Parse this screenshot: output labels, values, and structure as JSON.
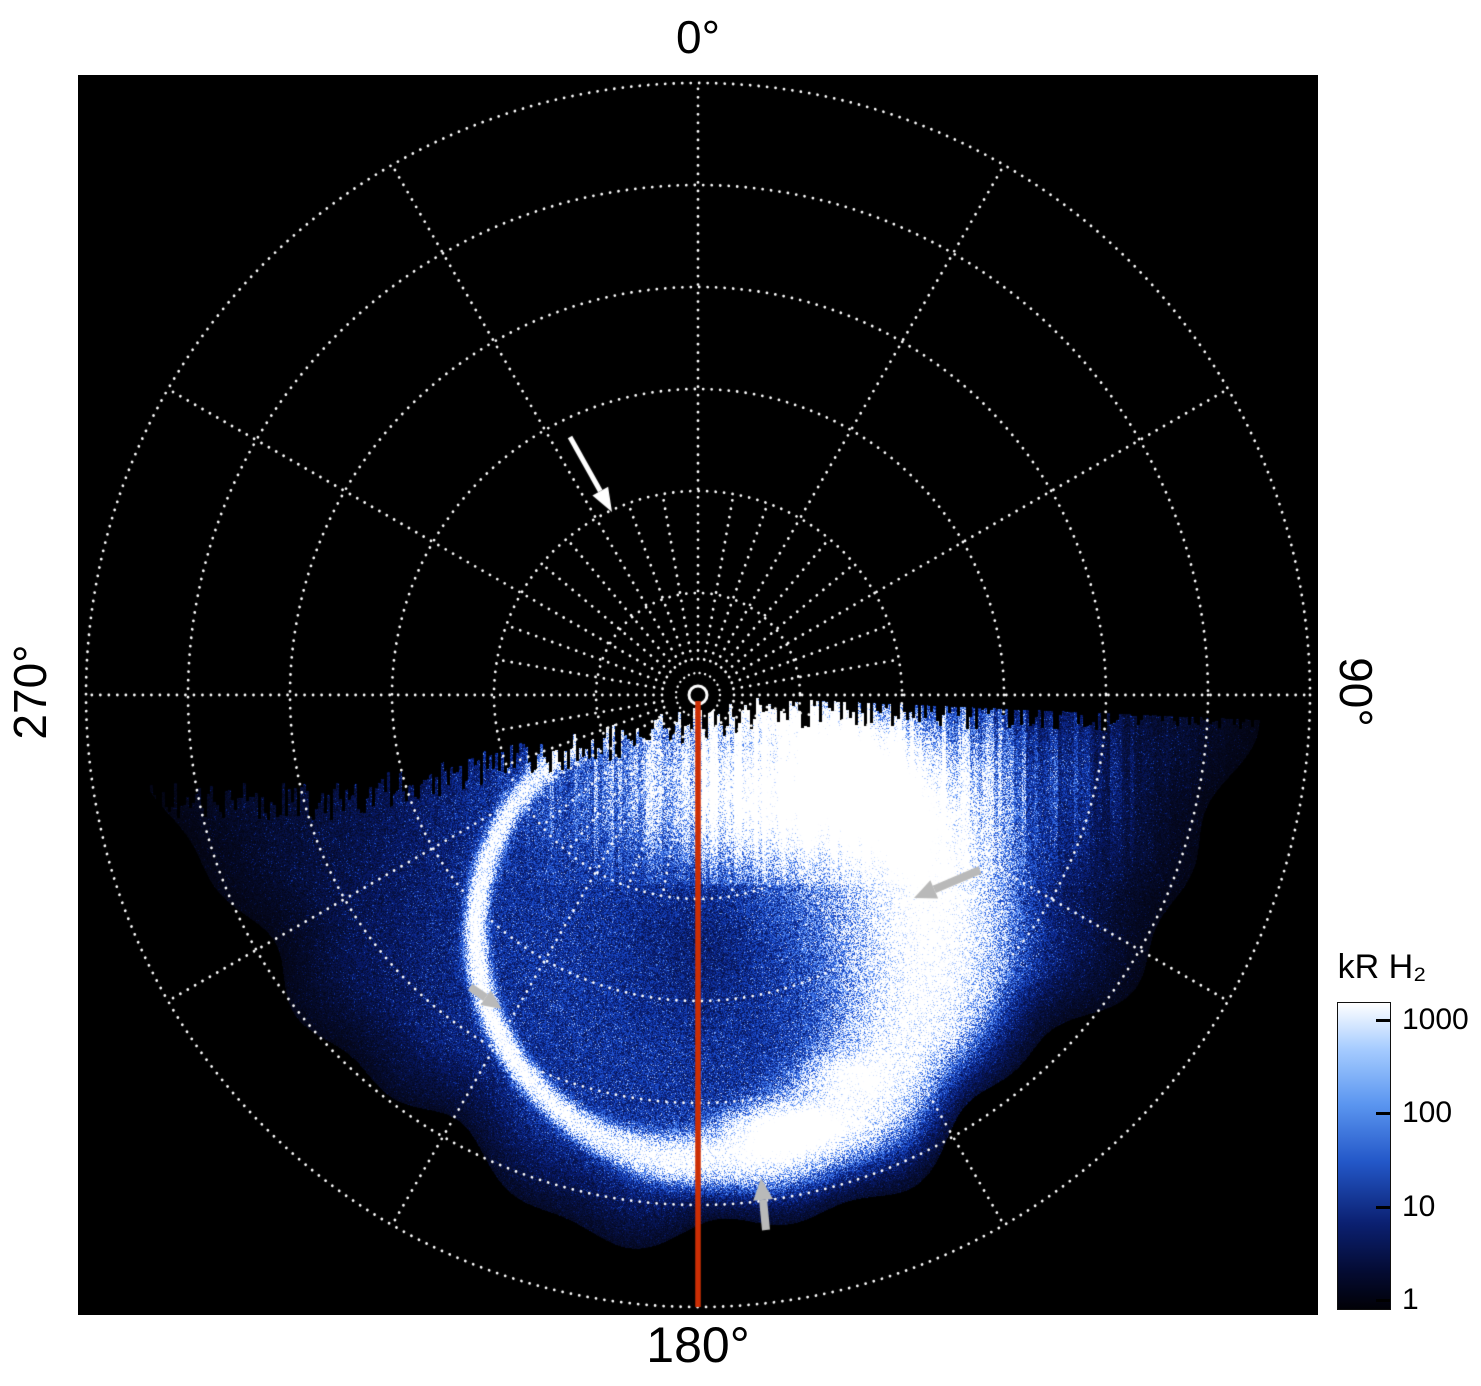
{
  "figure": {
    "background": "#ffffff",
    "plot_background": "#000000"
  },
  "labels": {
    "top": "0°",
    "right": "90°",
    "bottom": "180°",
    "left": "270°"
  },
  "colorbar": {
    "title": "kR H₂",
    "ticks": [
      "1000",
      "100",
      "10",
      "1"
    ]
  },
  "colors": {
    "grid": "#ffffff",
    "meridian_line": "#cc2e04",
    "arrow_white": "#ffffff",
    "arrow_gray": "#b9b9b9",
    "colorbar_gradient": [
      "#ffffff",
      "#a6ccff",
      "#5b96f0",
      "#2357c8",
      "#0b2071",
      "#040b32",
      "#010107"
    ]
  },
  "chart_data": {
    "type": "heatmap",
    "projection": "polar",
    "title": "",
    "angle_ticks_deg": [
      0,
      90,
      180,
      270
    ],
    "angle_tick_labels": [
      "0°",
      "90°",
      "180°",
      "270°"
    ],
    "grid": {
      "style": "dotted",
      "spoke_interval_deg": 30,
      "inner_spoke_interval_deg": 10,
      "radial_circle_count": 6
    },
    "colorbar": {
      "label": "kR H₂",
      "scale": "log",
      "min": 1,
      "max": 1000,
      "ticks": [
        1000,
        100,
        10,
        1
      ]
    },
    "data_extent": {
      "angular_deg": [
        90,
        270
      ],
      "description": "auroral emission data fills only the lower half (90°–270°); upper half of the polar map is black (no data)"
    },
    "features": [
      "bright auroral oval arc around the pole, offset toward 180°",
      "thin very bright arc segment on the 225°–270° side of the oval",
      "broad bright emission swath on the 90°–135° side",
      "very bright patch with vertical streaks just below the pole toward 135°",
      "diffuse speckled blue emission filling the oval interior and surroundings"
    ],
    "annotations": [
      {
        "type": "arrow",
        "color": "#ffffff",
        "quadrant": "upper-left",
        "direction": "points inward toward the pole"
      },
      {
        "type": "arrow",
        "color": "#b9b9b9",
        "quadrant": "right",
        "direction": "points left toward the bright swath"
      },
      {
        "type": "arrow",
        "color": "#b9b9b9",
        "quadrant": "lower-left",
        "direction": "points toward the thin bright arc"
      },
      {
        "type": "arrow",
        "color": "#b9b9b9",
        "quadrant": "bottom",
        "direction": "points up toward the oval"
      },
      {
        "type": "line",
        "color": "#cc2e04",
        "description": "solid red meridian line from the pole to the 180° edge"
      }
    ]
  }
}
